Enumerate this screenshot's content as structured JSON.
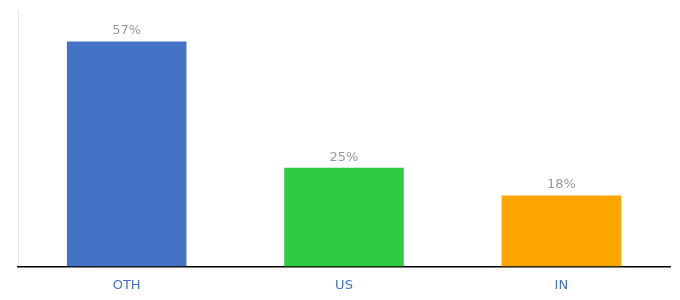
{
  "chart_data": {
    "type": "bar",
    "categories": [
      "OTH",
      "US",
      "IN"
    ],
    "values": [
      57,
      25,
      18
    ],
    "value_labels": [
      "57%",
      "25%",
      "18%"
    ],
    "data_labels": true,
    "colors": [
      "#4472C4",
      "#2ECC40",
      "#FFA500"
    ],
    "ylim": [
      0,
      65
    ],
    "tick_labels": "x",
    "grid": false
  }
}
